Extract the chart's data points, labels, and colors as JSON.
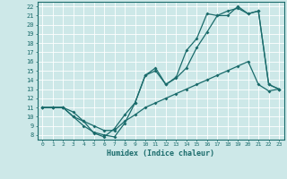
{
  "xlabel": "Humidex (Indice chaleur)",
  "bg_color": "#cde8e8",
  "grid_color": "#b0d4d4",
  "line_color": "#1a6b6b",
  "xlim": [
    -0.5,
    23.5
  ],
  "ylim": [
    7.5,
    22.5
  ],
  "xticks": [
    0,
    1,
    2,
    3,
    4,
    5,
    6,
    7,
    8,
    9,
    10,
    11,
    12,
    13,
    14,
    15,
    16,
    17,
    18,
    19,
    20,
    21,
    22,
    23
  ],
  "yticks": [
    8,
    9,
    10,
    11,
    12,
    13,
    14,
    15,
    16,
    17,
    18,
    19,
    20,
    21,
    22
  ],
  "line1_x": [
    0,
    1,
    2,
    3,
    4,
    5,
    6,
    7,
    8,
    9,
    10,
    11,
    12,
    13,
    14,
    15,
    16,
    17,
    18,
    19,
    20,
    21,
    22,
    23
  ],
  "line1_y": [
    11,
    11,
    11,
    10,
    9,
    8.3,
    8,
    7.8,
    9.3,
    11.5,
    14.5,
    15.3,
    13.5,
    14.3,
    17.2,
    18.5,
    21.2,
    21.0,
    21.0,
    22.0,
    21.2,
    21.5,
    13.5,
    13.0
  ],
  "line2_x": [
    0,
    1,
    2,
    3,
    4,
    5,
    6,
    7,
    8,
    9,
    10,
    11,
    12,
    13,
    14,
    15,
    16,
    17,
    18,
    19,
    20,
    21,
    22,
    23
  ],
  "line2_y": [
    11,
    11,
    11,
    10.5,
    9.5,
    8.2,
    7.8,
    8.7,
    10.2,
    11.5,
    14.5,
    15.0,
    13.5,
    14.2,
    15.3,
    17.5,
    19.2,
    21.0,
    21.5,
    21.8,
    21.2,
    21.5,
    13.5,
    13.0
  ],
  "line3_x": [
    0,
    1,
    2,
    3,
    4,
    5,
    6,
    7,
    8,
    9,
    10,
    11,
    12,
    13,
    14,
    15,
    16,
    17,
    18,
    19,
    20,
    21,
    22,
    23
  ],
  "line3_y": [
    11,
    11,
    11,
    10,
    9.5,
    9.0,
    8.5,
    8.5,
    9.5,
    10.2,
    11.0,
    11.5,
    12.0,
    12.5,
    13.0,
    13.5,
    14.0,
    14.5,
    15.0,
    15.5,
    16.0,
    13.5,
    12.8,
    13.0
  ]
}
